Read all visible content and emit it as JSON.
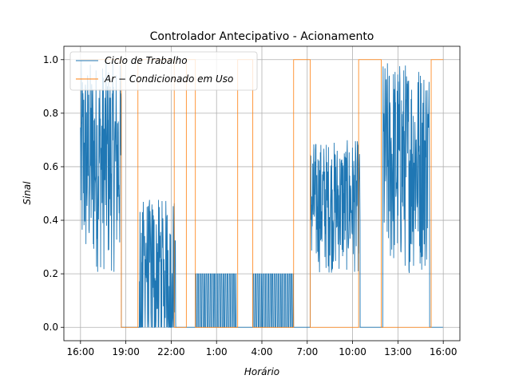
{
  "chart_data": {
    "type": "line",
    "title": "Controlador Antecipativo - Acionamento",
    "xlabel": "Horário",
    "ylabel": "Sinal",
    "x_unit": "hours since 16:00",
    "xlim": [
      -1.1,
      25.1
    ],
    "ylim": [
      -0.05,
      1.05
    ],
    "x_ticks": [
      0,
      3,
      6,
      9,
      12,
      15,
      18,
      21,
      24
    ],
    "x_tick_labels": [
      "16:00",
      "19:00",
      "22:00",
      "1:00",
      "4:00",
      "7:00",
      "10:00",
      "13:00",
      "16:00"
    ],
    "y_ticks": [
      0.0,
      0.2,
      0.4,
      0.6,
      0.8,
      1.0
    ],
    "y_tick_labels": [
      "0.0",
      "0.2",
      "0.4",
      "0.6",
      "0.8",
      "1.0"
    ],
    "grid": true,
    "legend_position": "top-left",
    "series": [
      {
        "name": "Ciclo de Trabalho",
        "color": "#1f77b4",
        "style": "noisy-duty-cycle",
        "segments": [
          {
            "x_start": 0.0,
            "x_end": 2.7,
            "kind": "noisy",
            "min": 0.2,
            "max": 1.0
          },
          {
            "x_start": 2.7,
            "x_end": 3.9,
            "kind": "zero"
          },
          {
            "x_start": 3.9,
            "x_end": 6.3,
            "kind": "noisy",
            "min": 0.0,
            "max": 0.48
          },
          {
            "x_start": 6.3,
            "x_end": 7.6,
            "kind": "zero"
          },
          {
            "x_start": 7.6,
            "x_end": 10.3,
            "kind": "pulse",
            "high": 0.2
          },
          {
            "x_start": 10.3,
            "x_end": 11.4,
            "kind": "zero"
          },
          {
            "x_start": 11.4,
            "x_end": 14.1,
            "kind": "pulse",
            "high": 0.2
          },
          {
            "x_start": 14.1,
            "x_end": 15.2,
            "kind": "zero"
          },
          {
            "x_start": 15.2,
            "x_end": 18.5,
            "kind": "noisy",
            "min": 0.2,
            "max": 0.7
          },
          {
            "x_start": 18.5,
            "x_end": 20.0,
            "kind": "zero"
          },
          {
            "x_start": 20.0,
            "x_end": 23.1,
            "kind": "noisy",
            "min": 0.2,
            "max": 1.0
          },
          {
            "x_start": 23.1,
            "x_end": 24.0,
            "kind": "zero"
          }
        ]
      },
      {
        "name": "Ar − Condicionado em Uso",
        "color": "#ff7f0e",
        "style": "step",
        "x": [
          0.0,
          2.7,
          2.7,
          3.8,
          3.8,
          6.2,
          6.2,
          7.0,
          7.0,
          7.6,
          7.6,
          10.4,
          10.4,
          11.4,
          11.4,
          14.1,
          14.1,
          15.2,
          15.2,
          18.4,
          18.4,
          19.9,
          19.9,
          23.2,
          23.2,
          24.0
        ],
        "y": [
          1.0,
          1.0,
          0.0,
          0.0,
          1.0,
          1.0,
          0.0,
          0.0,
          1.0,
          1.0,
          0.0,
          0.0,
          1.0,
          1.0,
          0.0,
          0.0,
          1.0,
          1.0,
          0.0,
          0.0,
          1.0,
          1.0,
          0.0,
          0.0,
          1.0,
          1.0
        ]
      }
    ]
  }
}
